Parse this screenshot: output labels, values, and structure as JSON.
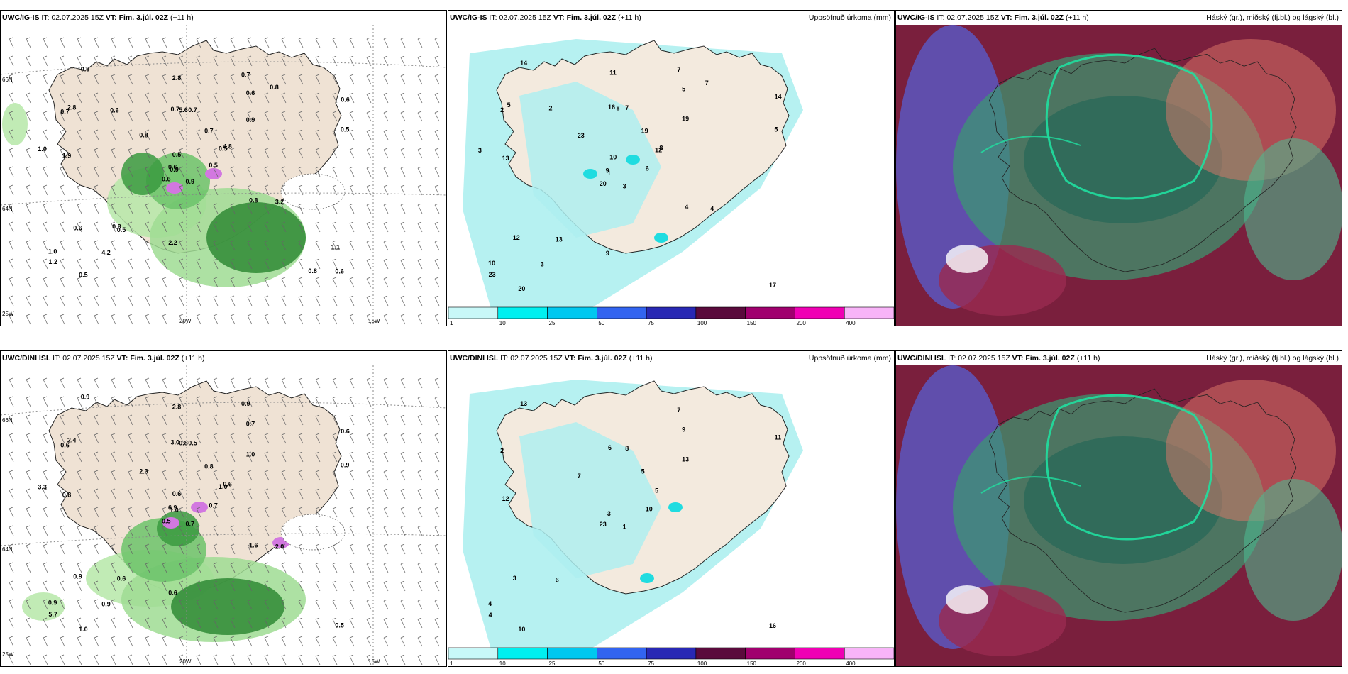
{
  "panels": [
    {
      "model": "UWC/IG-IS",
      "it_label": "IT:",
      "it": "02.07.2025 15Z",
      "vt_label": "VT:",
      "vt": "Fim. 3.júl. 02Z",
      "lead": "(+11 h)",
      "right_title": ""
    },
    {
      "model": "UWC/IG-IS",
      "it_label": "IT:",
      "it": "02.07.2025 15Z",
      "vt_label": "VT:",
      "vt": "Fim. 3.júl. 02Z",
      "lead": "(+11 h)",
      "right_title": "Uppsöfnuð úrkoma (mm)"
    },
    {
      "model": "UWC/IG-IS",
      "it_label": "IT:",
      "it": "02.07.2025 15Z",
      "vt_label": "VT:",
      "vt": "Fim. 3.júl. 02Z",
      "lead": "(+11 h)",
      "right_title": "Háský (gr.), miðský (fj.bl.) og lágský (bl.)"
    },
    {
      "model": "UWC/DINI ISL",
      "it_label": "IT:",
      "it": "02.07.2025 15Z",
      "vt_label": "VT:",
      "vt": "Fim. 3.júl. 02Z",
      "lead": "(+11 h)",
      "right_title": ""
    },
    {
      "model": "UWC/DINI ISL",
      "it_label": "IT:",
      "it": "02.07.2025 15Z",
      "vt_label": "VT:",
      "vt": "Fim. 3.júl. 02Z",
      "lead": "(+11 h)",
      "right_title": "Uppsöfnuð úrkoma (mm)"
    },
    {
      "model": "UWC/DINI ISL",
      "it_label": "IT:",
      "it": "02.07.2025 15Z",
      "vt_label": "VT:",
      "vt": "Fim. 3.júl. 02Z",
      "lead": "(+11 h)",
      "right_title": "Háský (gr.), miðský (fj.bl.) og lágský (bl.)"
    }
  ],
  "axes": {
    "lat_66": "66N",
    "lat_64": "64N",
    "lon_25": "25W",
    "lon_20": "20W",
    "lon_15": "15W"
  },
  "colorbar": {
    "labels": [
      "1",
      "10",
      "25",
      "50",
      "75",
      "100",
      "150",
      "200",
      "400"
    ],
    "colors": [
      "#c8f8f8",
      "#00f0f0",
      "#00c8f0",
      "#3264f0",
      "#2828b4",
      "#5a0a3c",
      "#a0006e",
      "#f000b4",
      "#f8b4f8"
    ]
  },
  "precip_values": {
    "p1": [
      "0.9",
      "0.7",
      "0.9",
      "1.0",
      "0.5",
      "0.5",
      "0.7",
      "0.7",
      "0.6",
      "0.5",
      "0.6",
      "0.6",
      "1.9",
      "0.6",
      "0.6",
      "0.9",
      "0.5",
      "0.7",
      "0.7",
      "0.6",
      "0.8",
      "1.2",
      "4.2",
      "5.6",
      "4.8",
      "3.2",
      "2.8",
      "2.8",
      "1.0",
      "0.8",
      "0.5",
      "0.6",
      "2.2",
      "0.5",
      "0.6",
      "0.8",
      "0.8",
      "0.8",
      "1.1"
    ],
    "p2": [
      "3",
      "2",
      "1",
      "10",
      "12",
      "13",
      "7",
      "7",
      "5",
      "6",
      "14",
      "17",
      "13",
      "14",
      "20",
      "19",
      "20",
      "16",
      "19",
      "12",
      "23",
      "23",
      "3",
      "8",
      "8",
      "4",
      "5",
      "11",
      "3",
      "4",
      "5",
      "9",
      "9",
      "10",
      "2",
      "7"
    ],
    "p4": [
      "0.7",
      "0.6",
      "1.0",
      "0.9",
      "1.0",
      "0.6",
      "0.9",
      "0.5",
      "0.7",
      "0.7",
      "0.9",
      "0.5",
      "0.8",
      "0.6",
      "0.5",
      "1.0",
      "1.0",
      "3.0",
      "0.8",
      "0.9",
      "2.3",
      "5.7",
      "0.9",
      "0.8",
      "0.6",
      "2.0",
      "2.4",
      "2.8",
      "3.3",
      "1.6",
      "0.9",
      "6.9",
      "0.6",
      "0.6"
    ],
    "p5": [
      "1",
      "2",
      "3",
      "4",
      "5",
      "6",
      "7",
      "8",
      "9",
      "10",
      "13",
      "16",
      "12",
      "11",
      "23",
      "13",
      "10",
      "6",
      "5",
      "3",
      "7",
      "4"
    ]
  }
}
